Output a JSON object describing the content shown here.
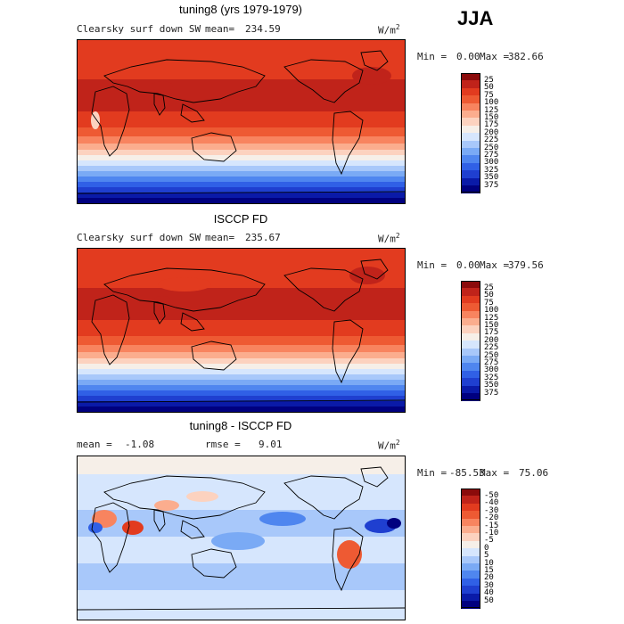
{
  "season": "JJA",
  "chart_data": [
    {
      "type": "heatmap",
      "title": "tuning8 (yrs 1979-1979)",
      "field_label": "Clearsky surf down SW",
      "stat_label": "mean=",
      "stat_value": "234.59",
      "units": "W/m",
      "units_exp": "2",
      "min_label": "Min =",
      "min_value": "0.00",
      "max_label": "Max =",
      "max_value": "382.66",
      "contour_levels": [
        25,
        50,
        75,
        100,
        125,
        150,
        175,
        200,
        225,
        250,
        275,
        300,
        325,
        350,
        375
      ],
      "colors": [
        "#00007f",
        "#0a1aa8",
        "#1f3fd0",
        "#3060e6",
        "#4f86ef",
        "#7aaaf5",
        "#a8c8fa",
        "#d6e6fd",
        "#f6efe8",
        "#fcd2bf",
        "#fbad8e",
        "#f8845f",
        "#ee5a33",
        "#e23b1f",
        "#c0231a",
        "#8b0b0b"
      ]
    },
    {
      "type": "heatmap",
      "title": "ISCCP FD",
      "field_label": "Clearsky surf down SW",
      "stat_label": "mean=",
      "stat_value": "235.67",
      "units": "W/m",
      "units_exp": "2",
      "min_label": "Min =",
      "min_value": "0.00",
      "max_label": "Max =",
      "max_value": "379.56",
      "contour_levels": [
        25,
        50,
        75,
        100,
        125,
        150,
        175,
        200,
        225,
        250,
        275,
        300,
        325,
        350,
        375
      ],
      "colors": [
        "#00007f",
        "#0a1aa8",
        "#1f3fd0",
        "#3060e6",
        "#4f86ef",
        "#7aaaf5",
        "#a8c8fa",
        "#d6e6fd",
        "#f6efe8",
        "#fcd2bf",
        "#fbad8e",
        "#f8845f",
        "#ee5a33",
        "#e23b1f",
        "#c0231a",
        "#8b0b0b"
      ]
    },
    {
      "type": "heatmap",
      "title": "tuning8 - ISCCP FD",
      "stat_label": "mean =",
      "stat_value": "-1.08",
      "rmse_label": "rmse =",
      "rmse_value": "9.01",
      "units": "W/m",
      "units_exp": "2",
      "min_label": "Min =",
      "min_value": "-85.53",
      "max_label": "Max =",
      "max_value": "75.06",
      "contour_levels": [
        -50,
        -40,
        -30,
        -20,
        -15,
        -10,
        -5,
        0,
        5,
        10,
        15,
        20,
        30,
        40,
        50
      ],
      "colors": [
        "#00007f",
        "#0a1aa8",
        "#1f3fd0",
        "#3060e6",
        "#4f86ef",
        "#7aaaf5",
        "#a8c8fa",
        "#d6e6fd",
        "#f6efe8",
        "#fcd2bf",
        "#fbad8e",
        "#f8845f",
        "#ee5a33",
        "#e23b1f",
        "#c0231a",
        "#8b0b0b"
      ]
    }
  ]
}
